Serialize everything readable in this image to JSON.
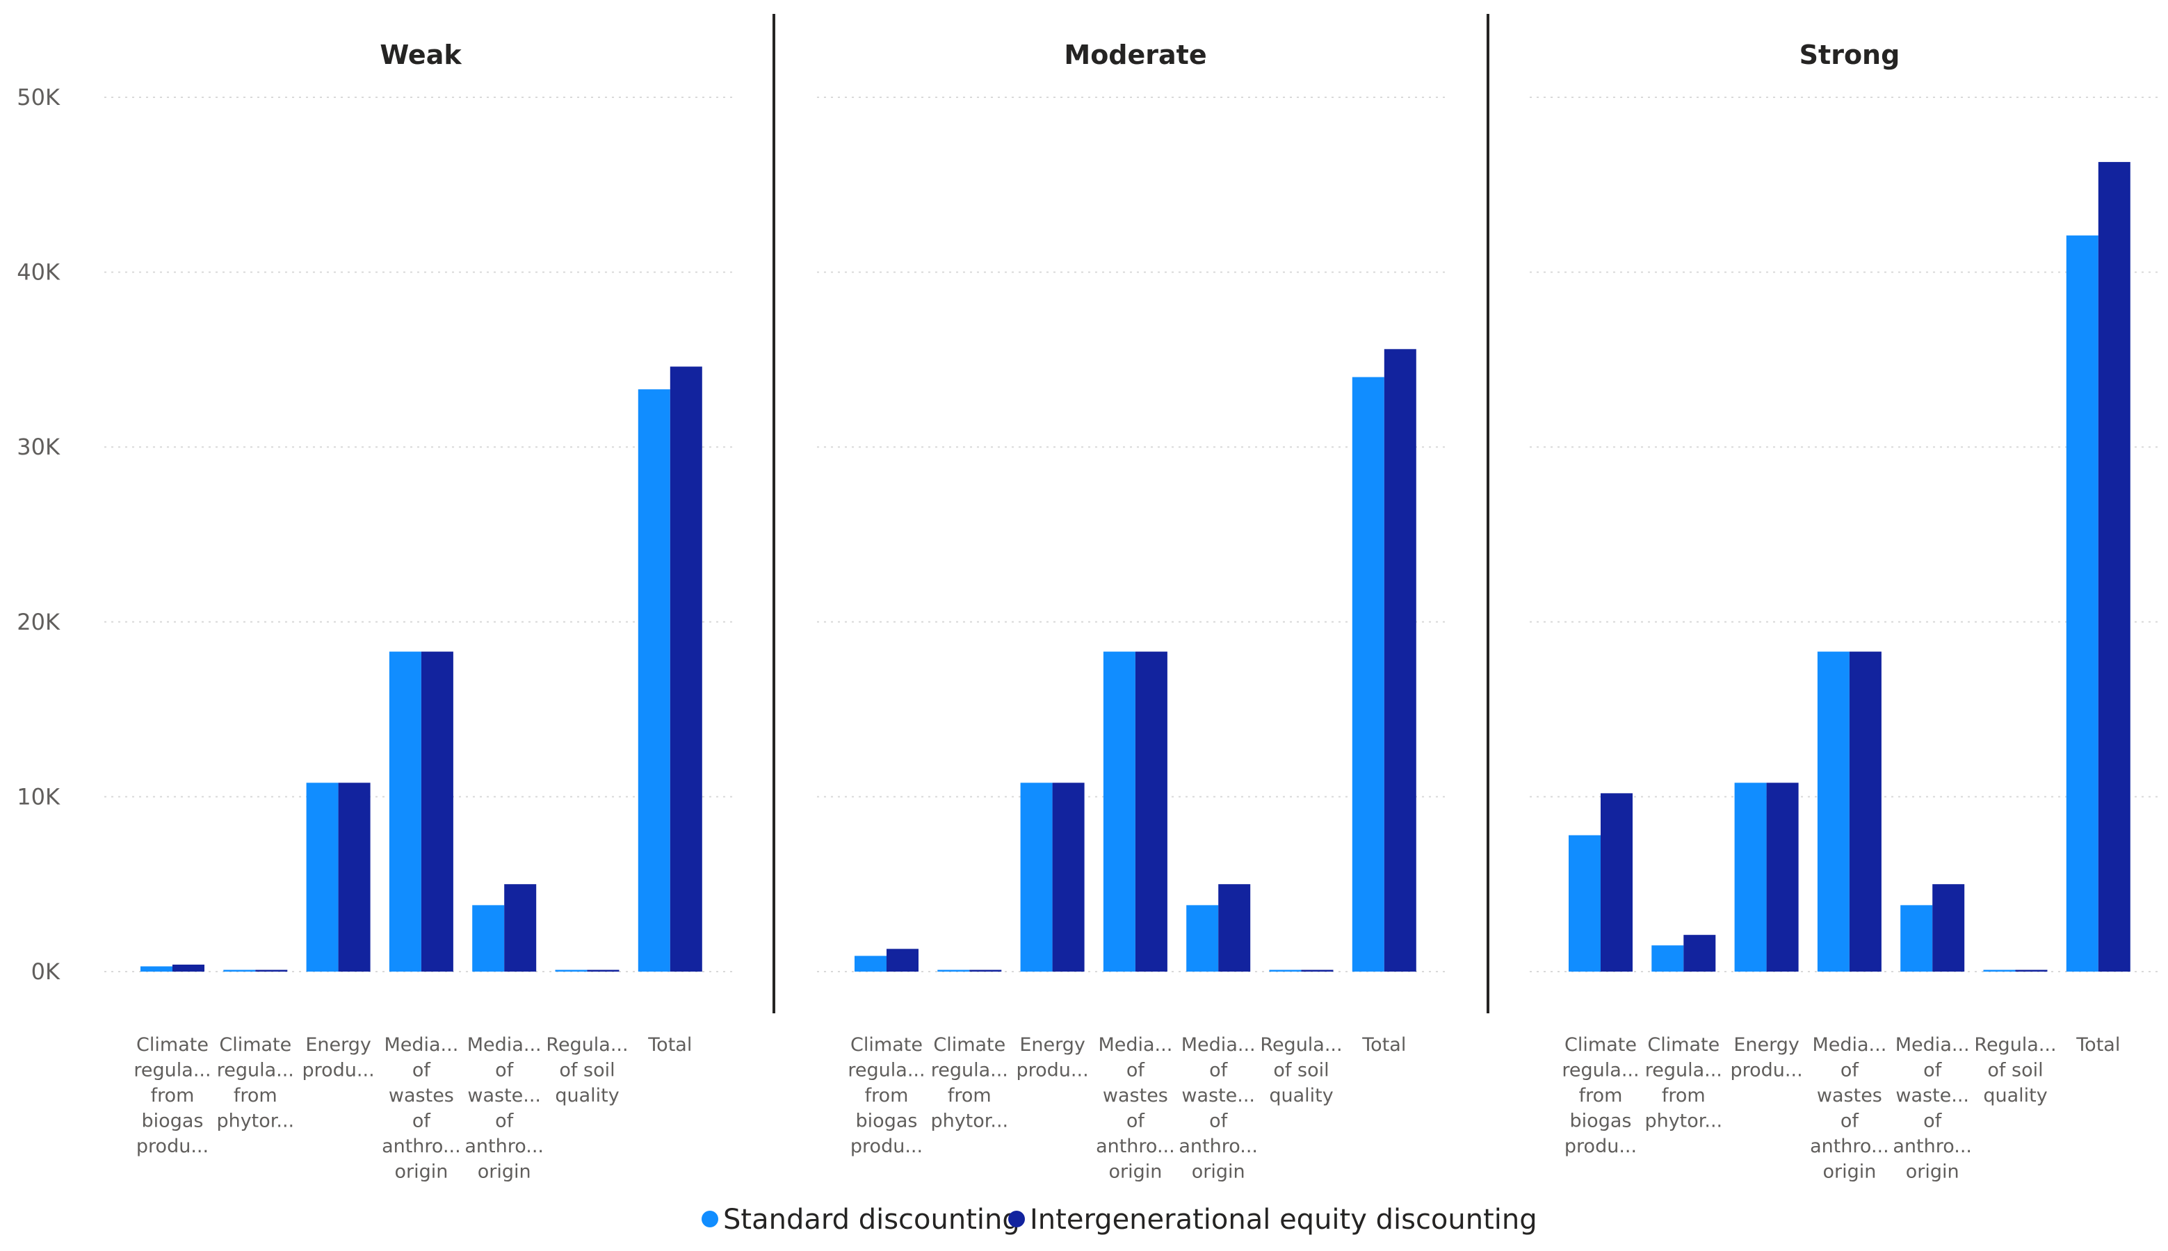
{
  "chart_data": {
    "type": "bar",
    "ylim": [
      0,
      50000
    ],
    "yticks": [
      "0K",
      "10K",
      "20K",
      "30K",
      "40K",
      "50K"
    ],
    "ytick_values": [
      0,
      10000,
      20000,
      30000,
      40000,
      50000
    ],
    "grid": true,
    "legend_position": "bottom",
    "category_labels": [
      [
        "Climate",
        "regula...",
        "from",
        "biogas",
        "produ..."
      ],
      [
        "Climate",
        "regula...",
        "from",
        "phytor..."
      ],
      [
        "Energy",
        "produ..."
      ],
      [
        "Media...",
        "of",
        "wastes",
        "of",
        "anthro...",
        "origin"
      ],
      [
        "Media...",
        "of",
        "waste...",
        "of",
        "anthro...",
        "origin"
      ],
      [
        "Regula...",
        "of soil",
        "quality"
      ],
      [
        "Total"
      ]
    ],
    "series_names": [
      "Standard discounting",
      "Intergenerational equity discounting"
    ],
    "colors": {
      "standard": "#118DFF",
      "intergenerational": "#12239E",
      "divider": "#252423",
      "grid": "#d9d9d9"
    },
    "panels": [
      {
        "title": "Weak",
        "series": [
          {
            "name": "Standard discounting",
            "values": [
              300,
              100,
              10800,
              18300,
              3800,
              100,
              33300
            ]
          },
          {
            "name": "Intergenerational equity discounting",
            "values": [
              400,
              100,
              10800,
              18300,
              5000,
              100,
              34600
            ]
          }
        ]
      },
      {
        "title": "Moderate",
        "series": [
          {
            "name": "Standard discounting",
            "values": [
              900,
              100,
              10800,
              18300,
              3800,
              100,
              34000
            ]
          },
          {
            "name": "Intergenerational equity discounting",
            "values": [
              1300,
              100,
              10800,
              18300,
              5000,
              100,
              35600
            ]
          }
        ]
      },
      {
        "title": "Strong",
        "series": [
          {
            "name": "Standard discounting",
            "values": [
              7800,
              1500,
              10800,
              18300,
              3800,
              100,
              42100
            ]
          },
          {
            "name": "Intergenerational equity discounting",
            "values": [
              10200,
              2100,
              10800,
              18300,
              5000,
              100,
              46300
            ]
          }
        ]
      }
    ]
  }
}
